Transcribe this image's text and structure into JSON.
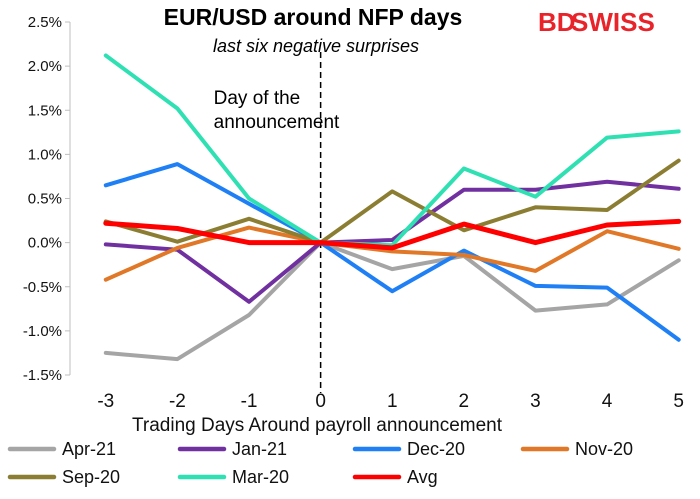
{
  "logo": {
    "part1": "BD",
    "part2": "SWISS"
  },
  "chart_data": {
    "type": "line",
    "title": "EUR/USD around NFP days",
    "subtitle": "last six negative surprises",
    "xlabel": "Trading Days Around payroll announcement",
    "ylabel": "",
    "x": [
      -3,
      -2,
      -1,
      0,
      1,
      2,
      3,
      4,
      5
    ],
    "x_tick_labels": [
      "-3",
      "-2",
      "-1",
      "0",
      "1",
      "2",
      "3",
      "4",
      "5"
    ],
    "xlim": [
      -3.5,
      5.2
    ],
    "ylim": [
      -1.5,
      2.5
    ],
    "y_ticks": [
      -1.5,
      -1.0,
      -0.5,
      0.0,
      0.5,
      1.0,
      1.5,
      2.0,
      2.5
    ],
    "y_tick_labels": [
      "-1.5%",
      "-1.0%",
      "-0.5%",
      "0.0%",
      "0.5%",
      "1.0%",
      "1.5%",
      "2.0%",
      "2.5%"
    ],
    "grid": false,
    "legend_position": "bottom",
    "annotation": {
      "text_line1": "Day of the",
      "text_line2": "announcement",
      "x": 0
    },
    "series": [
      {
        "name": "Apr-21",
        "color": "#a5a5a5",
        "values": [
          -1.25,
          -1.32,
          -0.82,
          0.0,
          -0.3,
          -0.15,
          -0.77,
          -0.7,
          -0.2
        ]
      },
      {
        "name": "Jan-21",
        "color": "#7030a0",
        "values": [
          -0.02,
          -0.08,
          -0.67,
          0.0,
          0.03,
          0.6,
          0.6,
          0.69,
          0.61
        ]
      },
      {
        "name": "Dec-20",
        "color": "#1f7ff5",
        "values": [
          0.65,
          0.89,
          0.44,
          0.0,
          -0.55,
          -0.09,
          -0.49,
          -0.51,
          -1.1
        ]
      },
      {
        "name": "Nov-20",
        "color": "#e07828",
        "values": [
          -0.42,
          -0.06,
          0.17,
          0.0,
          -0.1,
          -0.14,
          -0.32,
          0.13,
          -0.07
        ]
      },
      {
        "name": "Sep-20",
        "color": "#8b7e33",
        "values": [
          0.24,
          0.01,
          0.27,
          0.0,
          0.58,
          0.14,
          0.4,
          0.37,
          0.93
        ]
      },
      {
        "name": "Mar-20",
        "color": "#2fe0b3",
        "values": [
          2.12,
          1.52,
          0.5,
          0.0,
          -0.03,
          0.84,
          0.52,
          1.19,
          1.26
        ]
      },
      {
        "name": "Avg",
        "color": "#ff0000",
        "values": [
          0.22,
          0.16,
          0.0,
          0.0,
          -0.06,
          0.21,
          0.0,
          0.2,
          0.24
        ]
      }
    ]
  }
}
